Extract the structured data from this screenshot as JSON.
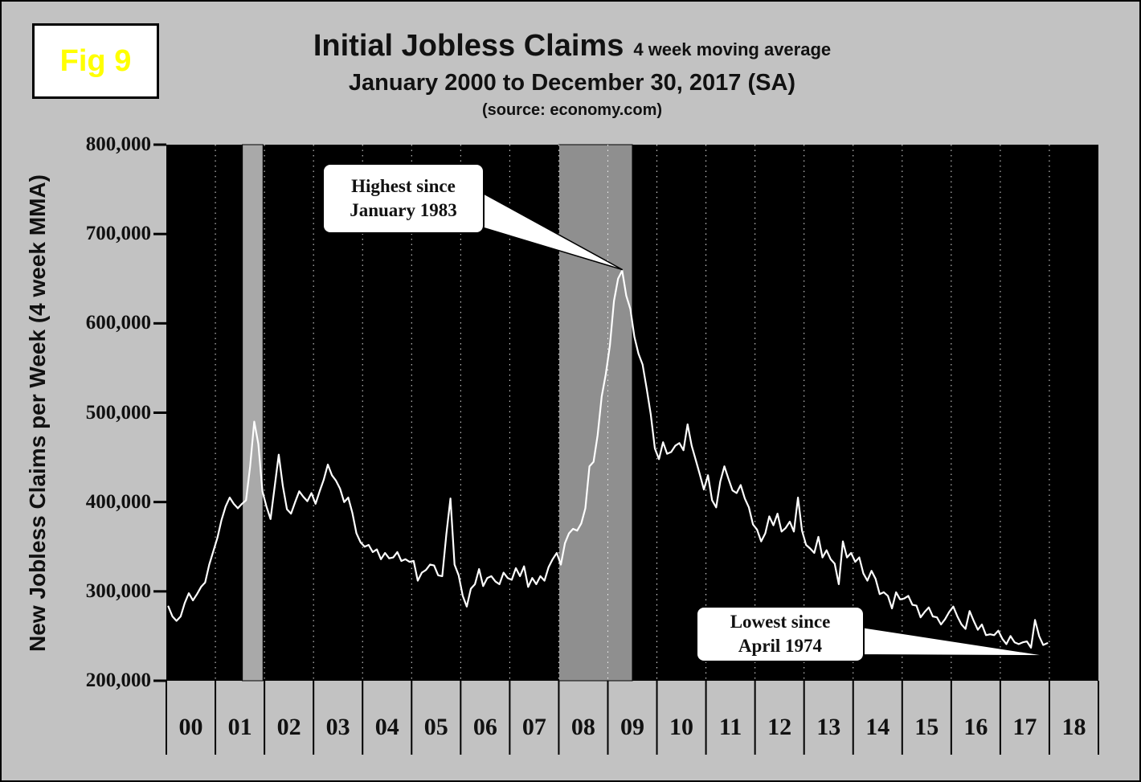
{
  "figure_label": "Fig 9",
  "header": {
    "title": "Initial Jobless Claims",
    "title_suffix": "4 week moving average",
    "subtitle": "January 2000 to December 30, 2017 (SA)",
    "source": "(source: economy.com)"
  },
  "y_axis": {
    "label": "New Jobless Claims per Week (4 week MMA)",
    "tick_labels": [
      "800,000",
      "700,000",
      "600,000",
      "500,000",
      "400,000",
      "300,000",
      "200,000"
    ],
    "tick_values": [
      800000,
      700000,
      600000,
      500000,
      400000,
      300000,
      200000
    ]
  },
  "x_axis": {
    "labels": [
      "00",
      "01",
      "02",
      "03",
      "04",
      "05",
      "06",
      "07",
      "08",
      "09",
      "10",
      "11",
      "12",
      "13",
      "14",
      "15",
      "16",
      "17",
      "18"
    ]
  },
  "annotations": [
    {
      "lines": [
        "Highest since",
        "January 1983"
      ],
      "target_x": 2009.3,
      "target_y": 660000
    },
    {
      "lines": [
        "Lowest since",
        "April 1974"
      ],
      "target_x": 2017.97,
      "target_y": 228000
    }
  ],
  "colors": {
    "background": "#c2c2c2",
    "plot_background": "#000000",
    "line": "#ffffff",
    "recession_band_2001": "#a9a9a9",
    "recession_band_2008": "#8f8f8f",
    "fig_label_text": "#ffff00",
    "callout_background": "#ffffff",
    "text": "#111111"
  },
  "chart_data": {
    "type": "line",
    "title": "Initial Jobless Claims, 4 week moving average, January 2000 to December 30, 2017 (SA)",
    "series_name": "New Jobless Claims per Week (4 week MMA)",
    "x_unit": "months starting January 2000",
    "value_unit": "claims per week, stored in thousands",
    "value_scale": 1000,
    "xlim": [
      2000,
      2019
    ],
    "ylim": [
      200000,
      800000
    ],
    "grid": "vertical dotted yearly gridlines, black plot background",
    "legend": "none",
    "recession_bands_years": [
      [
        2001.55,
        2001.97
      ],
      [
        2008.0,
        2009.5
      ]
    ],
    "values_thousands": [
      283,
      272,
      267,
      272,
      287,
      298,
      290,
      297,
      305,
      310,
      330,
      345,
      360,
      380,
      395,
      405,
      398,
      393,
      398,
      402,
      440,
      490,
      465,
      412,
      395,
      381,
      417,
      453,
      418,
      392,
      387,
      400,
      412,
      406,
      401,
      410,
      398,
      412,
      425,
      442,
      430,
      424,
      415,
      400,
      405,
      388,
      365,
      355,
      350,
      352,
      344,
      347,
      336,
      343,
      337,
      338,
      344,
      334,
      336,
      333,
      334,
      312,
      321,
      324,
      330,
      329,
      318,
      317,
      364,
      404,
      330,
      318,
      295,
      283,
      303,
      308,
      325,
      306,
      315,
      317,
      311,
      308,
      321,
      315,
      313,
      326,
      317,
      328,
      305,
      315,
      308,
      317,
      312,
      327,
      336,
      343,
      330,
      354,
      365,
      370,
      368,
      376,
      393,
      440,
      445,
      475,
      518,
      543,
      575,
      625,
      650,
      659,
      631,
      616,
      585,
      566,
      554,
      527,
      498,
      460,
      448,
      467,
      454,
      456,
      463,
      466,
      458,
      487,
      463,
      447,
      431,
      414,
      430,
      402,
      394,
      423,
      440,
      426,
      413,
      410,
      419,
      404,
      394,
      375,
      369,
      356,
      365,
      384,
      374,
      387,
      367,
      371,
      378,
      367,
      405,
      368,
      352,
      348,
      343,
      361,
      338,
      346,
      336,
      331,
      308,
      356,
      338,
      343,
      333,
      338,
      320,
      312,
      323,
      314,
      297,
      299,
      295,
      281,
      299,
      291,
      292,
      295,
      285,
      284,
      271,
      277,
      282,
      272,
      271,
      263,
      269,
      277,
      283,
      272,
      263,
      258,
      278,
      267,
      257,
      263,
      251,
      252,
      251,
      256,
      247,
      241,
      250,
      243,
      241,
      243,
      244,
      237,
      268,
      250,
      240,
      242
    ]
  }
}
